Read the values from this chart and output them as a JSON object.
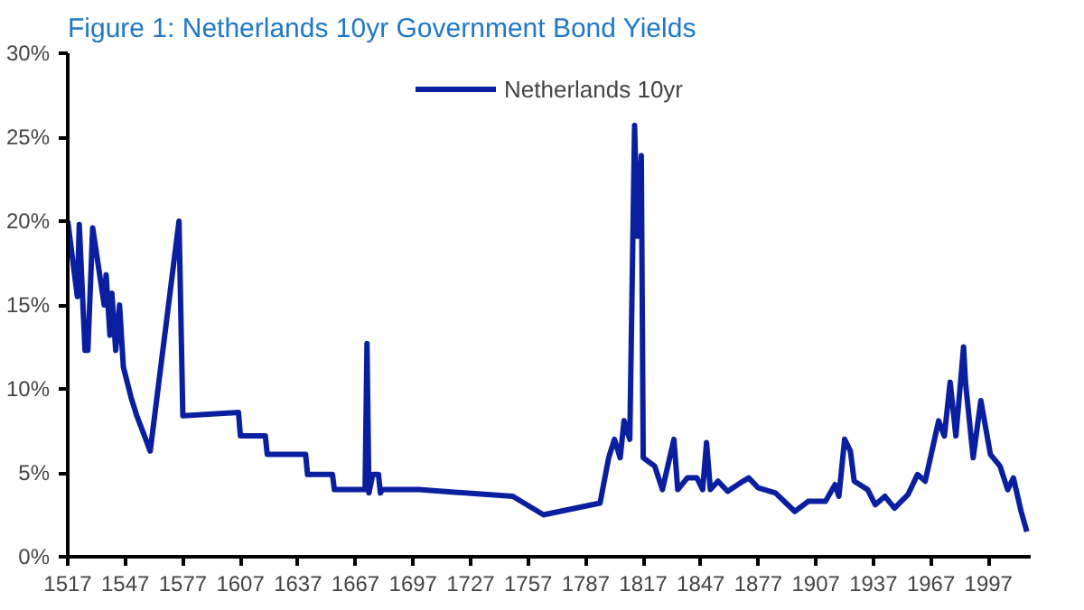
{
  "chart_data": {
    "type": "line",
    "title": "Figure 1: Netherlands 10yr Government Bond Yields",
    "x": [
      1517,
      1522,
      1523,
      1526,
      1527.5,
      1530,
      1536,
      1537,
      1539,
      1540,
      1542,
      1544,
      1546,
      1550,
      1553,
      1560,
      1575,
      1577,
      1606,
      1607,
      1620,
      1621,
      1641,
      1642,
      1655,
      1656,
      1672,
      1673,
      1674,
      1676,
      1679,
      1680,
      1681,
      1700,
      1749,
      1765,
      1794.5,
      1799,
      1802,
      1805,
      1807,
      1810,
      1812.5,
      1814,
      1816,
      1817,
      1823,
      1827,
      1833,
      1835,
      1840,
      1845,
      1848,
      1850,
      1852,
      1856,
      1861,
      1869,
      1872,
      1877,
      1886,
      1896,
      1903,
      1912,
      1917,
      1919,
      1922,
      1925,
      1927,
      1934,
      1938,
      1943,
      1948,
      1955,
      1960,
      1964,
      1971,
      1974,
      1977,
      1980,
      1984,
      1985,
      1989,
      1993,
      1998,
      2003,
      2007,
      2010,
      2014,
      2017
    ],
    "series": [
      {
        "name": "Netherlands 10yr",
        "color": "#0a1fa0",
        "values": [
          20.0,
          15.5,
          19.8,
          12.3,
          12.3,
          19.6,
          15.0,
          16.8,
          13.2,
          15.7,
          12.3,
          15.0,
          11.3,
          9.5,
          8.4,
          6.3,
          20.0,
          8.4,
          8.6,
          7.2,
          7.2,
          6.1,
          6.1,
          4.9,
          4.9,
          4.0,
          4.0,
          12.7,
          3.8,
          4.9,
          4.9,
          3.8,
          4.0,
          4.0,
          3.6,
          2.5,
          3.2,
          5.9,
          7.0,
          5.9,
          8.1,
          7.0,
          25.7,
          19.1,
          23.9,
          5.9,
          5.4,
          4.0,
          7.0,
          4.0,
          4.7,
          4.7,
          4.0,
          6.8,
          4.0,
          4.5,
          3.9,
          4.5,
          4.7,
          4.1,
          3.8,
          2.7,
          3.3,
          3.3,
          4.3,
          3.6,
          7.0,
          6.3,
          4.5,
          4.0,
          3.1,
          3.6,
          2.9,
          3.7,
          4.9,
          4.5,
          8.1,
          7.2,
          10.4,
          7.2,
          12.5,
          10.4,
          5.9,
          9.3,
          6.1,
          5.4,
          4.0,
          4.7,
          2.7,
          1.5
        ]
      }
    ],
    "xlim": [
      1517,
      2019
    ],
    "xticks": [
      1517,
      1547,
      1577,
      1607,
      1637,
      1667,
      1697,
      1727,
      1757,
      1787,
      1817,
      1847,
      1877,
      1907,
      1937,
      1967,
      1997
    ],
    "ylim": [
      0,
      30
    ],
    "yticks": [
      {
        "value": 0,
        "label": "0%"
      },
      {
        "value": 5,
        "label": "5%"
      },
      {
        "value": 10,
        "label": "10%"
      },
      {
        "value": 15,
        "label": "15%"
      },
      {
        "value": 20,
        "label": "20%"
      },
      {
        "value": 25,
        "label": "25%"
      },
      {
        "value": 30,
        "label": "30%"
      }
    ],
    "legend": "top",
    "grid": false,
    "marker": "none",
    "line_style": "solid"
  }
}
